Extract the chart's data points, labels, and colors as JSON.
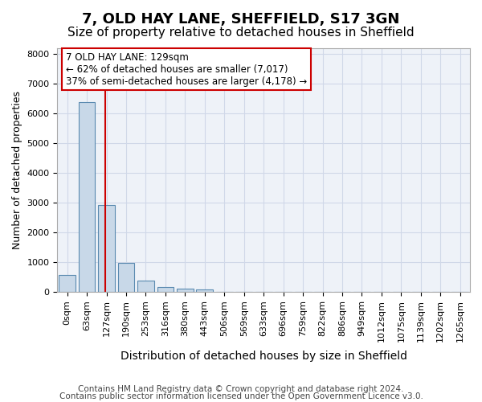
{
  "title1": "7, OLD HAY LANE, SHEFFIELD, S17 3GN",
  "title2": "Size of property relative to detached houses in Sheffield",
  "xlabel": "Distribution of detached houses by size in Sheffield",
  "ylabel": "Number of detached properties",
  "footer1": "Contains HM Land Registry data © Crown copyright and database right 2024.",
  "footer2": "Contains public sector information licensed under the Open Government Licence v3.0.",
  "bar_labels": [
    "0sqm",
    "63sqm",
    "127sqm",
    "190sqm",
    "253sqm",
    "316sqm",
    "380sqm",
    "443sqm",
    "506sqm",
    "569sqm",
    "633sqm",
    "696sqm",
    "759sqm",
    "822sqm",
    "886sqm",
    "949sqm",
    "1012sqm",
    "1075sqm",
    "1139sqm",
    "1202sqm",
    "1265sqm"
  ],
  "bar_values": [
    580,
    6390,
    2920,
    990,
    370,
    175,
    110,
    85,
    0,
    0,
    0,
    0,
    0,
    0,
    0,
    0,
    0,
    0,
    0,
    0,
    0
  ],
  "bar_color": "#c8d8e8",
  "bar_edge_color": "#5a8ab0",
  "grid_color": "#d0d8e8",
  "background_color": "#eef2f8",
  "vline_x_index": 2,
  "vline_color": "#cc0000",
  "annotation_text": "7 OLD HAY LANE: 129sqm\n← 62% of detached houses are smaller (7,017)\n37% of semi-detached houses are larger (4,178) →",
  "annotation_box_color": "#ffffff",
  "annotation_box_edge": "#cc0000",
  "ylim": [
    0,
    8200
  ],
  "yticks": [
    0,
    1000,
    2000,
    3000,
    4000,
    5000,
    6000,
    7000,
    8000
  ],
  "title1_fontsize": 13,
  "title2_fontsize": 11,
  "tick_fontsize": 8,
  "ylabel_fontsize": 9,
  "xlabel_fontsize": 10,
  "annotation_fontsize": 8.5,
  "footer_fontsize": 7.5
}
